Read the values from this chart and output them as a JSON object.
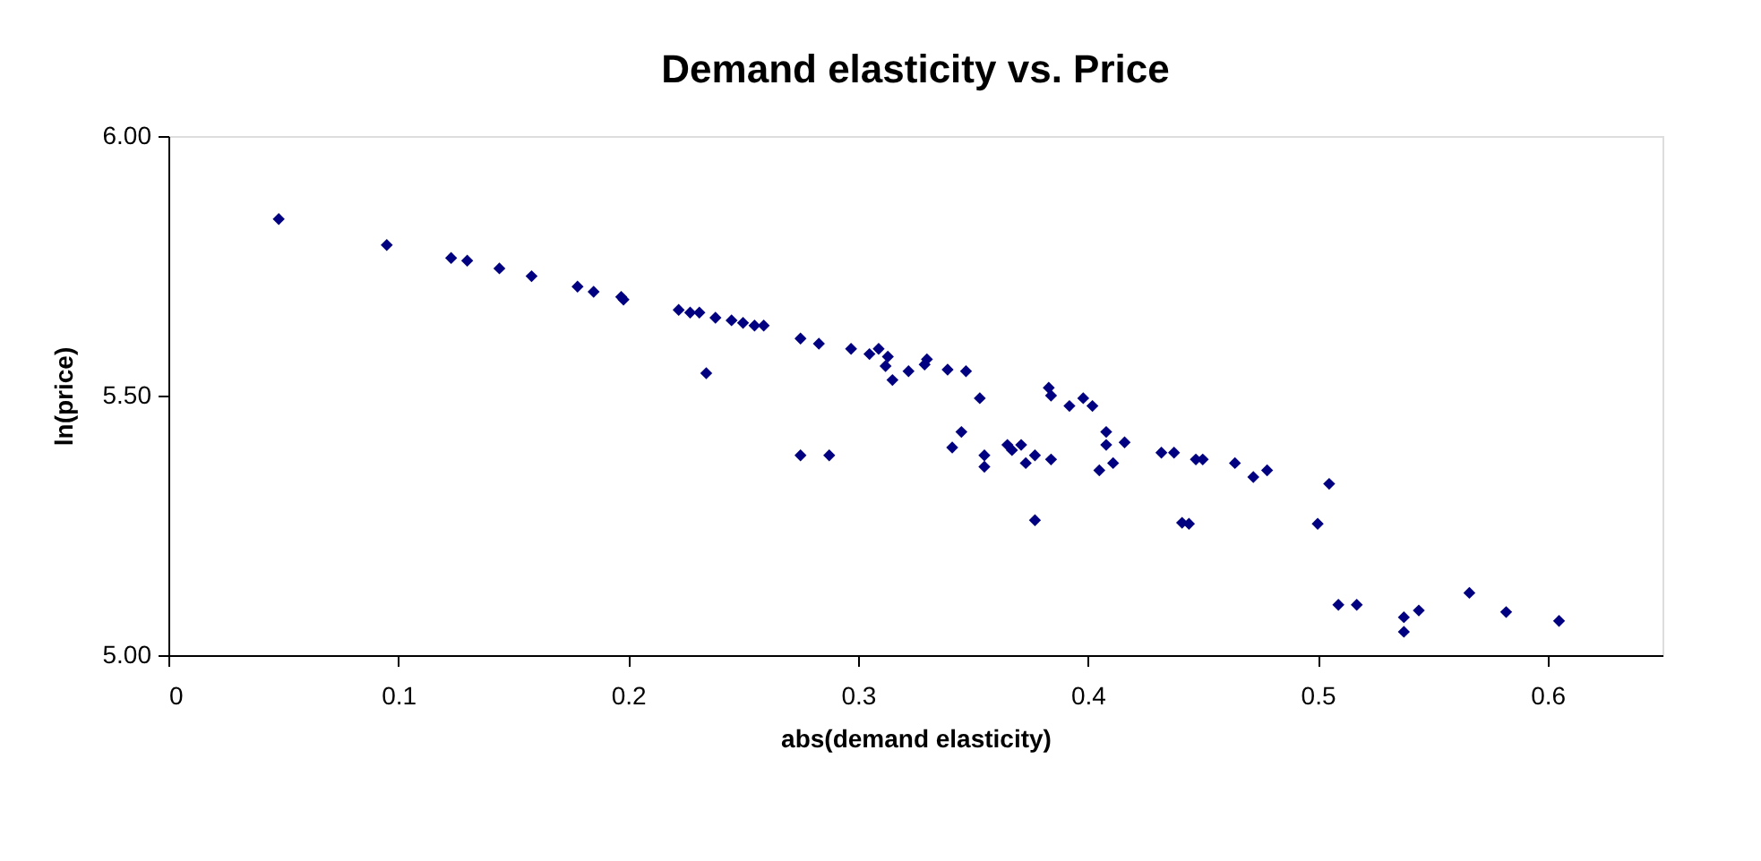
{
  "chart_data": {
    "type": "scatter",
    "title": "Demand elasticity vs. Price",
    "xlabel": "abs(demand elasticity)",
    "ylabel": "ln(price)",
    "x": [
      0.048,
      0.095,
      0.123,
      0.13,
      0.144,
      0.158,
      0.178,
      0.185,
      0.197,
      0.198,
      0.222,
      0.227,
      0.231,
      0.238,
      0.245,
      0.25,
      0.255,
      0.259,
      0.234,
      0.275,
      0.283,
      0.297,
      0.305,
      0.309,
      0.313,
      0.312,
      0.315,
      0.322,
      0.329,
      0.33,
      0.339,
      0.347,
      0.353,
      0.345,
      0.341,
      0.275,
      0.2875,
      0.355,
      0.355,
      0.365,
      0.371,
      0.367,
      0.377,
      0.373,
      0.384,
      0.377,
      0.383,
      0.384,
      0.392,
      0.398,
      0.402,
      0.408,
      0.408,
      0.416,
      0.405,
      0.411,
      0.432,
      0.4375,
      0.447,
      0.45,
      0.444,
      0.441,
      0.464,
      0.472,
      0.478,
      0.5,
      0.505,
      0.509,
      0.517,
      0.5375,
      0.5375,
      0.544,
      0.566,
      0.582,
      0.605
    ],
    "values": [
      5.84,
      5.79,
      5.765,
      5.76,
      5.745,
      5.73,
      5.71,
      5.7,
      5.69,
      5.685,
      5.665,
      5.66,
      5.66,
      5.65,
      5.645,
      5.64,
      5.635,
      5.635,
      5.543,
      5.61,
      5.6,
      5.59,
      5.58,
      5.59,
      5.575,
      5.557,
      5.53,
      5.547,
      5.56,
      5.57,
      5.55,
      5.547,
      5.495,
      5.43,
      5.4,
      5.385,
      5.385,
      5.385,
      5.363,
      5.405,
      5.405,
      5.395,
      5.385,
      5.37,
      5.377,
      5.26,
      5.515,
      5.5,
      5.48,
      5.495,
      5.48,
      5.43,
      5.405,
      5.41,
      5.356,
      5.37,
      5.39,
      5.39,
      5.377,
      5.377,
      5.253,
      5.255,
      5.37,
      5.343,
      5.356,
      5.253,
      5.33,
      5.097,
      5.097,
      5.073,
      5.045,
      5.086,
      5.12,
      5.083,
      5.066
    ],
    "color": "#000080",
    "marker": "diamond",
    "grid": false,
    "xlim": [
      0,
      0.65
    ],
    "xticks": [
      0,
      0.1,
      0.2,
      0.3,
      0.4,
      0.5,
      0.6
    ],
    "ylim": [
      5.0,
      6.0
    ],
    "yticks": [
      {
        "value": 5.0,
        "label": "5.00"
      },
      {
        "value": 5.5,
        "label": "5.50"
      },
      {
        "value": 6.0,
        "label": "6.00"
      }
    ]
  }
}
